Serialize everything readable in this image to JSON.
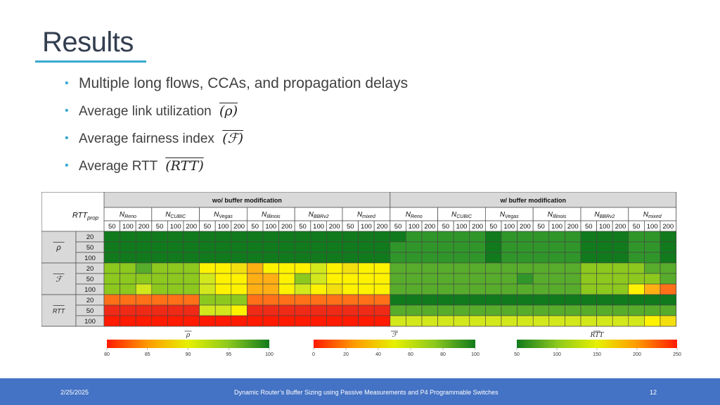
{
  "slide": {
    "title": "Results",
    "bullets": [
      {
        "text": "Multiple long flows, CCAs, and propagation delays",
        "symbol": ""
      },
      {
        "text": "Average link utilization",
        "symbol": "(ρ)"
      },
      {
        "text": "Average fairness index",
        "symbol": "(ℱ)"
      },
      {
        "text": "Average RTT",
        "symbol": "(RTT)"
      }
    ]
  },
  "chart_data": {
    "type": "heatmap",
    "corner_label": "RTTprop",
    "groups": [
      "wo/ buffer modification",
      "w/ buffer modification"
    ],
    "ccas": [
      "NReno",
      "NCUBIC",
      "NVegas",
      "NIllinois",
      "NBBRv2",
      "Nmixed"
    ],
    "rtt_props": [
      "50",
      "100",
      "200"
    ],
    "row_blocks": [
      {
        "label": "ρ",
        "rows": [
          "20",
          "50",
          "100"
        ]
      },
      {
        "label": "ℱ",
        "rows": [
          "20",
          "50",
          "100"
        ]
      },
      {
        "label": "RTT",
        "rows": [
          "20",
          "50",
          "100"
        ]
      }
    ],
    "colors": {
      "dg": "#117a1c",
      "g": "#30962a",
      "lg": "#58ac2c",
      "yg": "#8cc81e",
      "yl": "#d2e81c",
      "y": "#fff200",
      "ly": "#f3df10",
      "o": "#ffaf14",
      "do": "#ff7018",
      "r": "#ef2a16",
      "rr": "#ff1a00"
    },
    "cells": [
      [
        "dg",
        "dg",
        "dg",
        "dg",
        "dg",
        "dg",
        "dg",
        "dg",
        "dg",
        "dg",
        "dg",
        "dg",
        "dg",
        "dg",
        "dg",
        "dg",
        "dg",
        "dg",
        "dg",
        "g",
        "g",
        "g",
        "g",
        "g",
        "dg",
        "g",
        "g",
        "g",
        "g",
        "g",
        "dg",
        "dg",
        "dg",
        "g",
        "g",
        "dg"
      ],
      [
        "dg",
        "dg",
        "dg",
        "dg",
        "dg",
        "dg",
        "dg",
        "dg",
        "dg",
        "dg",
        "dg",
        "dg",
        "dg",
        "dg",
        "dg",
        "dg",
        "dg",
        "dg",
        "g",
        "g",
        "g",
        "g",
        "g",
        "g",
        "dg",
        "g",
        "g",
        "g",
        "g",
        "g",
        "dg",
        "dg",
        "dg",
        "g",
        "g",
        "dg"
      ],
      [
        "dg",
        "dg",
        "dg",
        "dg",
        "dg",
        "dg",
        "dg",
        "dg",
        "dg",
        "dg",
        "dg",
        "dg",
        "dg",
        "dg",
        "dg",
        "dg",
        "dg",
        "dg",
        "g",
        "g",
        "g",
        "g",
        "g",
        "g",
        "dg",
        "g",
        "g",
        "g",
        "g",
        "g",
        "dg",
        "dg",
        "dg",
        "g",
        "g",
        "dg"
      ],
      [
        "yg",
        "yg",
        "lg",
        "yg",
        "yg",
        "yg",
        "y",
        "y",
        "ly",
        "o",
        "y",
        "y",
        "y",
        "yl",
        "y",
        "ly",
        "y",
        "y",
        "lg",
        "lg",
        "lg",
        "lg",
        "lg",
        "lg",
        "lg",
        "lg",
        "lg",
        "lg",
        "lg",
        "lg",
        "yg",
        "yg",
        "yg",
        "yg",
        "lg",
        "lg"
      ],
      [
        "yg",
        "yg",
        "yg",
        "yg",
        "yg",
        "yg",
        "yl",
        "y",
        "y",
        "o",
        "o",
        "y",
        "yg",
        "yl",
        "y",
        "y",
        "y",
        "y",
        "lg",
        "lg",
        "lg",
        "lg",
        "lg",
        "lg",
        "lg",
        "lg",
        "g",
        "lg",
        "lg",
        "lg",
        "yg",
        "yg",
        "yg",
        "yg",
        "yg",
        "lg"
      ],
      [
        "yg",
        "yg",
        "yl",
        "yg",
        "yg",
        "yg",
        "yl",
        "y",
        "y",
        "o",
        "o",
        "y",
        "yl",
        "y",
        "ly",
        "y",
        "y",
        "y",
        "lg",
        "lg",
        "lg",
        "lg",
        "lg",
        "lg",
        "lg",
        "lg",
        "lg",
        "lg",
        "lg",
        "lg",
        "yg",
        "yg",
        "yg",
        "y",
        "o",
        "do"
      ],
      [
        "do",
        "do",
        "do",
        "do",
        "do",
        "do",
        "yg",
        "yg",
        "yg",
        "do",
        "do",
        "do",
        "do",
        "do",
        "do",
        "do",
        "do",
        "do",
        "dg",
        "dg",
        "dg",
        "dg",
        "dg",
        "dg",
        "dg",
        "dg",
        "dg",
        "dg",
        "dg",
        "dg",
        "dg",
        "dg",
        "dg",
        "dg",
        "dg",
        "dg"
      ],
      [
        "r",
        "r",
        "r",
        "r",
        "r",
        "r",
        "yl",
        "yl",
        "y",
        "r",
        "r",
        "r",
        "r",
        "r",
        "r",
        "r",
        "r",
        "r",
        "lg",
        "lg",
        "lg",
        "lg",
        "lg",
        "lg",
        "lg",
        "lg",
        "lg",
        "lg",
        "lg",
        "lg",
        "lg",
        "lg",
        "lg",
        "lg",
        "lg",
        "lg"
      ],
      [
        "rr",
        "rr",
        "rr",
        "rr",
        "rr",
        "rr",
        "rr",
        "rr",
        "rr",
        "rr",
        "rr",
        "rr",
        "rr",
        "rr",
        "rr",
        "rr",
        "rr",
        "rr",
        "yl",
        "yl",
        "yl",
        "yl",
        "yl",
        "yl",
        "yl",
        "yl",
        "yl",
        "yl",
        "yl",
        "yl",
        "yl",
        "yl",
        "yl",
        "yl",
        "y",
        "ly"
      ]
    ],
    "colorbars": [
      {
        "label": "ρ",
        "ticks": [
          "80",
          "85",
          "90",
          "95",
          "100"
        ],
        "colors": [
          "#ff1a00",
          "#ff9a00",
          "#e6f000",
          "#8cc81e",
          "#117a1c"
        ]
      },
      {
        "label": "ℱ",
        "ticks": [
          "0",
          "20",
          "40",
          "60",
          "80",
          "100"
        ],
        "colors": [
          "#ff1a00",
          "#ff9a00",
          "#e6f000",
          "#8cc81e",
          "#117a1c"
        ]
      },
      {
        "label": "RTT",
        "ticks": [
          "50",
          "100",
          "150",
          "200",
          "250"
        ],
        "colors": [
          "#117a1c",
          "#8cc81e",
          "#e6f000",
          "#ff9a00",
          "#ff1a00"
        ]
      }
    ]
  },
  "footer": {
    "date": "2/25/2025",
    "title": "Dynamic Router’s Buffer Sizing using Passive Measurements and P4 Programmable Switches",
    "slide_number": "12"
  }
}
